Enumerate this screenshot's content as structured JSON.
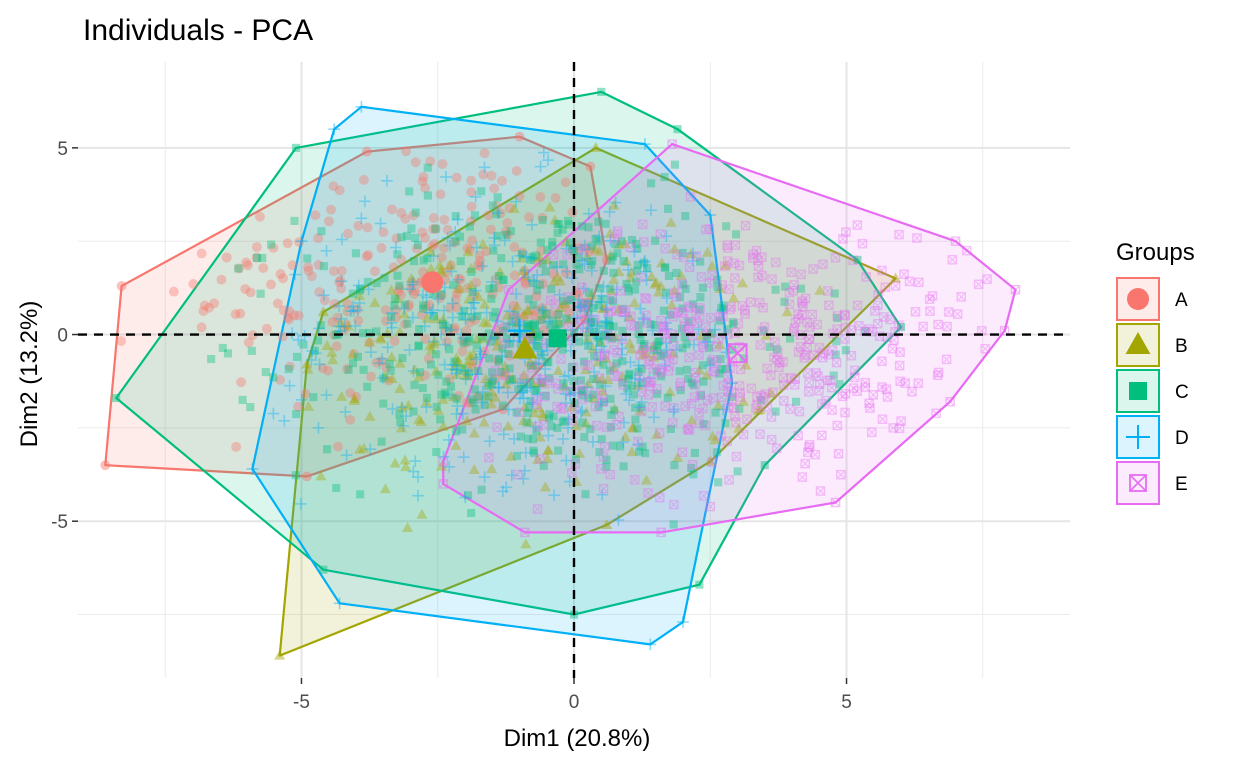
{
  "chart_data": {
    "type": "scatter",
    "title": "Individuals - PCA",
    "xlabel": "Dim1 (20.8%)",
    "ylabel": "Dim2 (13.2%)",
    "xlim": [
      -9.1,
      9.1
    ],
    "ylim": [
      -9.2,
      7.3
    ],
    "x_ticks": [
      -5,
      0,
      5
    ],
    "y_ticks": [
      -5,
      0,
      5
    ],
    "grid": true,
    "reference_lines": {
      "x": 0,
      "y": 0,
      "style": "dashed"
    },
    "legend": {
      "title": "Groups",
      "position": "right"
    },
    "series": [
      {
        "name": "A",
        "color": "#F8766D",
        "shape": "circle",
        "centroid": [
          -2.6,
          1.4
        ],
        "hull": [
          [
            -8.3,
            1.3
          ],
          [
            -3.8,
            4.9
          ],
          [
            -1.0,
            5.3
          ],
          [
            0.3,
            4.5
          ],
          [
            0.6,
            2.0
          ],
          [
            0.2,
            0.4
          ],
          [
            -1.3,
            -2.0
          ],
          [
            -4.9,
            -3.8
          ],
          [
            -8.6,
            -3.5
          ]
        ]
      },
      {
        "name": "B",
        "color": "#A3A500",
        "shape": "triangle",
        "centroid": [
          -0.9,
          -0.4
        ],
        "hull": [
          [
            -4.6,
            0.6
          ],
          [
            0.4,
            5.0
          ],
          [
            5.9,
            1.5
          ],
          [
            2.5,
            -3.4
          ],
          [
            0.6,
            -5.1
          ],
          [
            -5.4,
            -8.6
          ],
          [
            -4.9,
            -0.8
          ]
        ]
      },
      {
        "name": "C",
        "color": "#00BF7D",
        "shape": "square",
        "centroid": [
          -0.3,
          -0.1
        ],
        "hull": [
          [
            -5.1,
            5.0
          ],
          [
            0.5,
            6.5
          ],
          [
            1.9,
            5.5
          ],
          [
            5.2,
            2.0
          ],
          [
            6.0,
            0.2
          ],
          [
            3.5,
            -3.5
          ],
          [
            2.3,
            -6.7
          ],
          [
            0.0,
            -7.5
          ],
          [
            -4.6,
            -6.3
          ],
          [
            -8.4,
            -1.7
          ]
        ]
      },
      {
        "name": "D",
        "color": "#00B0F6",
        "shape": "plus",
        "centroid": [
          -1.0,
          0.1
        ],
        "hull": [
          [
            -4.4,
            5.5
          ],
          [
            -3.9,
            6.1
          ],
          [
            1.3,
            5.1
          ],
          [
            2.5,
            3.2
          ],
          [
            2.9,
            -1.3
          ],
          [
            2.0,
            -7.7
          ],
          [
            1.4,
            -8.3
          ],
          [
            -4.3,
            -7.2
          ],
          [
            -5.9,
            -3.6
          ],
          [
            -5.0,
            2.5
          ]
        ]
      },
      {
        "name": "E",
        "color": "#E76BF3",
        "shape": "square-cross",
        "centroid": [
          3.0,
          -0.5
        ],
        "hull": [
          [
            -1.2,
            1.2
          ],
          [
            1.8,
            5.1
          ],
          [
            7.0,
            2.5
          ],
          [
            8.1,
            1.2
          ],
          [
            7.9,
            0.1
          ],
          [
            6.9,
            -1.8
          ],
          [
            4.8,
            -4.5
          ],
          [
            1.6,
            -5.3
          ],
          [
            -0.9,
            -5.3
          ],
          [
            -2.4,
            -4.0
          ],
          [
            -2.4,
            -3.4
          ]
        ]
      }
    ]
  }
}
